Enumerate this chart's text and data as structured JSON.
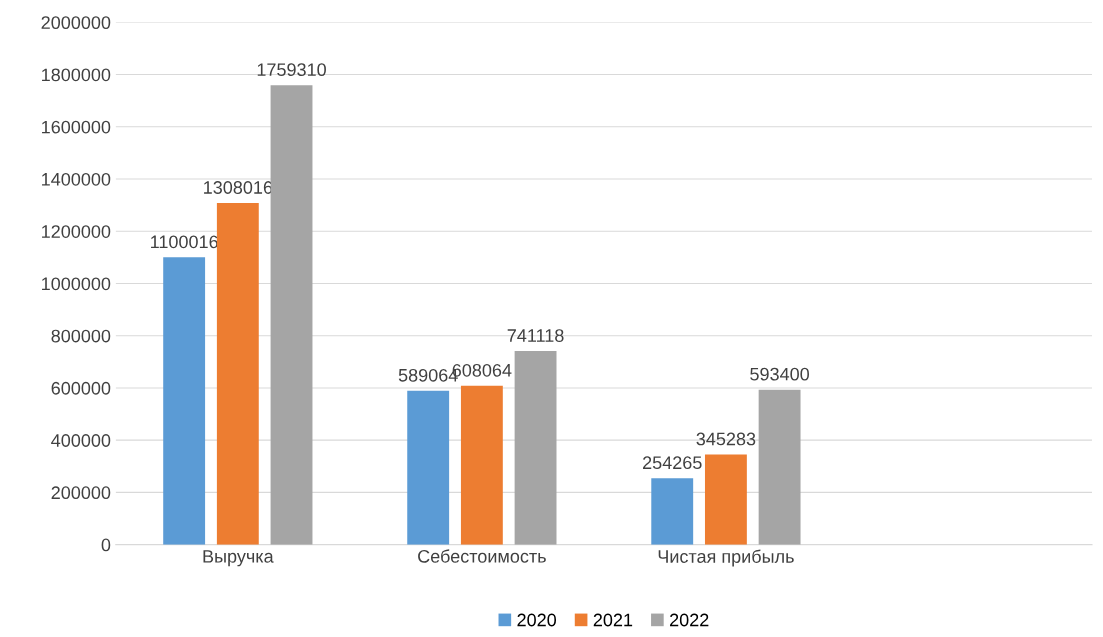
{
  "chart_data": {
    "type": "bar",
    "categories": [
      "Выручка",
      "Себестоимость",
      "Чистая прибыль",
      null
    ],
    "series": [
      {
        "name": "2020",
        "color": "#5b9bd5",
        "values": [
          1100016,
          589064,
          254265,
          null
        ]
      },
      {
        "name": "2021",
        "color": "#ed7d31",
        "values": [
          1308016,
          608064,
          345283,
          null
        ]
      },
      {
        "name": "2022",
        "color": "#a5a5a5",
        "values": [
          1759310,
          741118,
          593400,
          null
        ]
      }
    ],
    "ylim": [
      0,
      2000000
    ],
    "yticks": [
      0,
      200000,
      400000,
      600000,
      800000,
      1000000,
      1200000,
      1400000,
      1600000,
      1800000,
      2000000
    ],
    "grid": "y",
    "legend": "bottom",
    "data_labels": true
  }
}
